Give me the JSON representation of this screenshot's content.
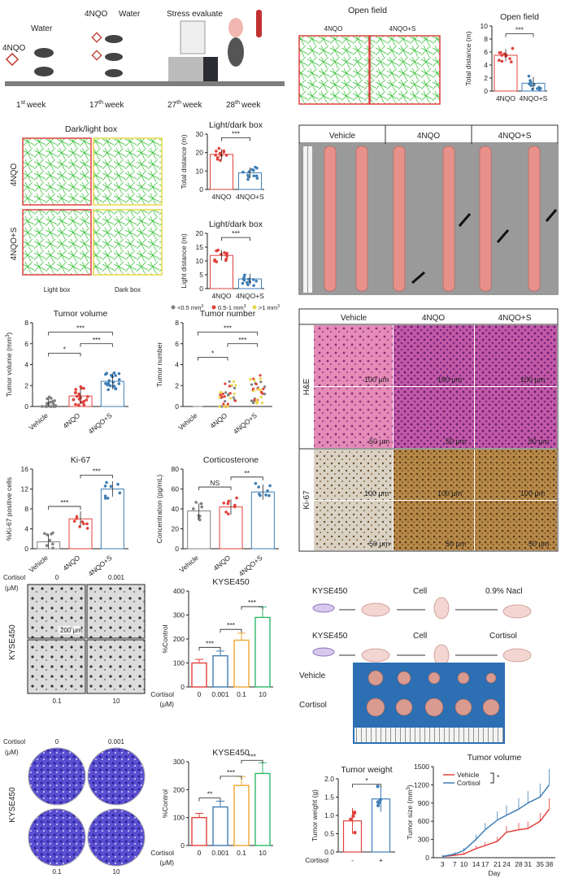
{
  "colors": {
    "red": "#e0413b",
    "blue": "#3f7eb5",
    "green": "#2fb96a",
    "orange": "#f0a830",
    "gray": "#808080",
    "yellow": "#e9d64a"
  },
  "panelA": {
    "water1": "Water",
    "agent": "4NQO",
    "agent2": "4NQO",
    "water2": "Water",
    "stress": "Stress evaluate",
    "week1": "1",
    "week17": "17",
    "week27": "27",
    "week28": "28",
    "wk": "week",
    "sup": "st",
    "supth": "th"
  },
  "panelB": {
    "title": "Open field",
    "left": "4NQO",
    "right": "4NQO+S"
  },
  "panelC": {
    "chart_data": {
      "type": "scatter-bar",
      "title": "Open field",
      "ylabel": "Total distance (m)",
      "ylim": [
        0,
        10
      ],
      "yticks": [
        0,
        2,
        4,
        6,
        8,
        10
      ],
      "categories": [
        "4NQO",
        "4NQO+S"
      ],
      "means": [
        5.5,
        1.2
      ],
      "sig": "***"
    }
  },
  "panelD": {
    "title": "Dark/light box",
    "row1": "4NQO",
    "row2": "4NQO+S",
    "col1": "Light box",
    "col2": "Dark box"
  },
  "panelE": {
    "chart_data": [
      {
        "type": "scatter-bar",
        "title": "Light/dark box",
        "ylabel": "Total distance (m)",
        "ylim": [
          0,
          30
        ],
        "yticks": [
          0,
          10,
          20,
          30
        ],
        "categories": [
          "4NQO",
          "4NQO+S"
        ],
        "means": [
          19,
          9
        ],
        "sig": "***"
      },
      {
        "type": "scatter-bar",
        "title": "Light/dark box",
        "ylabel": "Light distance (m)",
        "ylim": [
          0,
          20
        ],
        "yticks": [
          0,
          5,
          10,
          15,
          20
        ],
        "categories": [
          "4NQO",
          "4NQO+S"
        ],
        "means": [
          12,
          3.5
        ],
        "sig": "***"
      }
    ]
  },
  "panelF": {
    "cols": [
      "Vehicle",
      "4NQO",
      "4NQO+S"
    ]
  },
  "panelG": {
    "chart_data": {
      "type": "scatter-bar",
      "title": "Tumor volume",
      "ylabel": "Tumor volume (mm",
      "ylabel_sup": "3",
      "ylabel_end": ")",
      "ylim": [
        0,
        8
      ],
      "yticks": [
        0,
        2,
        4,
        6,
        8
      ],
      "categories": [
        "Vehicle",
        "4NQO",
        "4NQO+S"
      ],
      "means": [
        0,
        1.0,
        2.4
      ],
      "sigs": [
        "*",
        "***",
        "***"
      ]
    }
  },
  "panelH": {
    "chart_data": {
      "type": "scatter-bar",
      "title": "Tumor number",
      "ylabel": "Tumor  number",
      "ylim": [
        0,
        8
      ],
      "yticks": [
        0,
        2,
        4,
        6,
        8
      ],
      "categories": [
        "Vehicle",
        "4NQO",
        "4NQO+S"
      ],
      "legend": [
        "<0.5 mm",
        "0.5-1 mm",
        ">1 mm"
      ],
      "legend_sup": "3",
      "sigs": [
        "*",
        "***",
        "***"
      ]
    }
  },
  "panelI": {
    "cols": [
      "Vehicle",
      "4NQO",
      "4NQO+S"
    ],
    "rows": [
      "H&E",
      "Ki-67"
    ],
    "s100": "100 μm",
    "s50": "50 μm"
  },
  "panelJ": {
    "chart_data": {
      "type": "scatter-bar",
      "title": "Ki-67",
      "ylabel": "%Ki-67 positive cells",
      "ylim": [
        0,
        16
      ],
      "yticks": [
        0,
        4,
        8,
        12,
        16
      ],
      "categories": [
        "Vehicle",
        "4NQO",
        "4NQO+S"
      ],
      "means": [
        1.4,
        6,
        12
      ],
      "sigs": [
        "***",
        "***"
      ]
    }
  },
  "panelK": {
    "chart_data": {
      "type": "scatter-bar",
      "title": "Corticosterone",
      "ylabel": "Concentration (pg/mL)",
      "ylim": [
        0,
        80
      ],
      "yticks": [
        0,
        20,
        40,
        60,
        80
      ],
      "categories": [
        "Vehicle",
        "4NQO",
        "4NQO+S"
      ],
      "means": [
        38,
        42,
        57
      ],
      "sigs": [
        "NS",
        "**"
      ]
    }
  },
  "panelL": {
    "cortisol": "Cortisol",
    "unit": "(μM)",
    "c0": "0",
    "c1": "0.001",
    "c2": "0.1",
    "c3": "10",
    "cell": "KYSE450",
    "scale": "200 μm"
  },
  "panelM": {
    "chart_data": {
      "type": "bar",
      "title": "KYSE450",
      "ylabel": "%Control",
      "ylim": [
        0,
        400
      ],
      "yticks": [
        0,
        100,
        200,
        300,
        400
      ],
      "categories": [
        "0",
        "0.001",
        "0.1",
        "10"
      ],
      "values": [
        100,
        130,
        195,
        290
      ],
      "sigs": [
        "***",
        "***",
        "***"
      ],
      "xlabel": "Cortisol",
      "xunit": "(μM)"
    }
  },
  "panelN": {
    "cell1": "KYSE450",
    "cell2": "KYSE450",
    "cell": "Cell",
    "nacl": "0.9% Nacl",
    "cortisol": "Cortisol",
    "vehicle": "Vehicle"
  },
  "panelO": {
    "chart_data": {
      "type": "bar",
      "title": "KYSE450",
      "ylabel": "%Control",
      "ylim": [
        0,
        300
      ],
      "yticks": [
        0,
        100,
        200,
        300
      ],
      "categories": [
        "0",
        "0.001",
        "0.1",
        "10"
      ],
      "values": [
        100,
        138,
        215,
        258
      ],
      "sigs": [
        "**",
        "***",
        "***"
      ],
      "xlabel": "Cortisol",
      "xunit": "(μM)"
    }
  },
  "panelP": {
    "chart_data": {
      "type": "scatter-bar",
      "title": "Tumor weight",
      "ylabel": "Tumor weight (g)",
      "ylim": [
        0,
        2.0
      ],
      "yticks": [
        "0.0",
        "0.5",
        "1.0",
        "1.5",
        "2.0"
      ],
      "categories": [
        "-",
        "+"
      ],
      "means": [
        0.85,
        1.45
      ],
      "sig": "*",
      "xlabel": "Cortisol"
    }
  },
  "panelQ": {
    "chart_data": {
      "type": "line",
      "title": "Tumor volume",
      "ylabel": "Tumor size (mm",
      "ylabel_sup": "3",
      "ylabel_end": ")",
      "xlabel": "Day",
      "ylim": [
        0,
        1500
      ],
      "yticks": [
        0,
        300,
        600,
        900,
        1200,
        1500
      ],
      "x": [
        3,
        7,
        10,
        14,
        17,
        21,
        24,
        28,
        31,
        35,
        38
      ],
      "series": [
        {
          "name": "Vehicle",
          "values": [
            20,
            40,
            60,
            150,
            200,
            270,
            420,
            460,
            480,
            600,
            800
          ]
        },
        {
          "name": "Cortisol",
          "values": [
            20,
            60,
            120,
            300,
            460,
            620,
            700,
            800,
            900,
            1000,
            1200
          ]
        }
      ],
      "sig": "*"
    }
  }
}
